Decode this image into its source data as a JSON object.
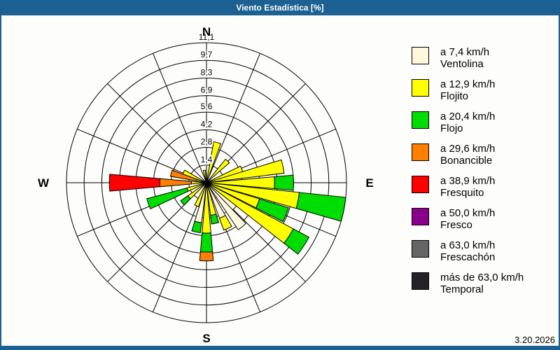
{
  "window": {
    "title": "Viento Estadística [%]",
    "date": "3.20.2026",
    "titlebar_color": "#1C6191"
  },
  "compass": {
    "north": "N",
    "east": "E",
    "south": "S",
    "west": "W"
  },
  "chart_data": {
    "type": "windrose",
    "unit": "%",
    "axis_max": 11.1,
    "ring_values": [
      1.4,
      2.8,
      4.2,
      5.6,
      6.9,
      8.3,
      9.7,
      11.1
    ],
    "ring_labels": [
      "1,4",
      "2,8",
      "4,2",
      "5,6",
      "6,9",
      "8,3",
      "9,7",
      "11,1"
    ],
    "spoke_count": 16,
    "bar_width_deg": 10,
    "grid_color": "#000000",
    "classes": [
      {
        "id": "ventolina",
        "color": "#FFF8DC",
        "speed_label": "a 7,4 km/h",
        "name": "Ventolina"
      },
      {
        "id": "flojito",
        "color": "#FFFF00",
        "speed_label": "a 12,9 km/h",
        "name": "Flojito"
      },
      {
        "id": "flojo",
        "color": "#00DD00",
        "speed_label": "a 20,4 km/h",
        "name": "Flojo"
      },
      {
        "id": "bonancible",
        "color": "#FF8000",
        "speed_label": "a 29,6 km/h",
        "name": "Bonancible"
      },
      {
        "id": "fresquito",
        "color": "#FF0000",
        "speed_label": "a 38,9 km/h",
        "name": "Fresquito"
      },
      {
        "id": "fresco",
        "color": "#8B008B",
        "speed_label": "a 50,0 km/h",
        "name": "Fresco"
      },
      {
        "id": "frescachon",
        "color": "#666666",
        "speed_label": "a 63,0 km/h",
        "name": "Frescachón"
      },
      {
        "id": "temporal",
        "color": "#242226",
        "speed_label": "más de 63,0 km/h",
        "name": "Temporal"
      }
    ],
    "bars": [
      {
        "dir": 15,
        "segments": [
          [
            "flojito",
            3.3
          ]
        ]
      },
      {
        "dir": 44,
        "segments": [
          [
            "flojito",
            2.4
          ]
        ]
      },
      {
        "dir": 69,
        "segments": [
          [
            "flojito",
            3.0
          ]
        ]
      },
      {
        "dir": 78,
        "segments": [
          [
            "flojito",
            6.2
          ]
        ]
      },
      {
        "dir": 90,
        "segments": [
          [
            "flojito",
            5.4
          ],
          [
            "flojo",
            6.9
          ]
        ]
      },
      {
        "dir": 101,
        "segments": [
          [
            "flojito",
            7.4
          ],
          [
            "flojo",
            11.1
          ]
        ]
      },
      {
        "dir": 112,
        "segments": [
          [
            "flojito",
            4.4
          ],
          [
            "flojo",
            6.8
          ]
        ]
      },
      {
        "dir": 123,
        "segments": [
          [
            "flojito",
            7.8
          ],
          [
            "flojo",
            9.2
          ]
        ]
      },
      {
        "dir": 133,
        "segments": [
          [
            "ventolina",
            3.0
          ]
        ]
      },
      {
        "dir": 141,
        "segments": [
          [
            "ventolina",
            4.5
          ]
        ]
      },
      {
        "dir": 155,
        "segments": [
          [
            "ventolina",
            3.0
          ],
          [
            "flojito",
            4.0
          ]
        ]
      },
      {
        "dir": 168,
        "segments": [
          [
            "flojito",
            2.6
          ],
          [
            "flojo",
            3.3
          ]
        ]
      },
      {
        "dir": 180,
        "segments": [
          [
            "flojito",
            4.0
          ],
          [
            "flojo",
            5.5
          ],
          [
            "bonancible",
            6.2
          ]
        ]
      },
      {
        "dir": 192,
        "segments": [
          [
            "ventolina",
            3.2
          ],
          [
            "flojo",
            4.0
          ]
        ]
      },
      {
        "dir": 203,
        "segments": [
          [
            "flojito",
            2.0
          ]
        ]
      },
      {
        "dir": 230,
        "segments": [
          [
            "flojito",
            1.8
          ],
          [
            "flojo",
            2.5
          ]
        ]
      },
      {
        "dir": 250,
        "segments": [
          [
            "flojito",
            1.6
          ],
          [
            "flojo",
            4.9
          ]
        ]
      },
      {
        "dir": 270,
        "segments": [
          [
            "flojito",
            1.2
          ],
          [
            "bonancible",
            3.7
          ],
          [
            "fresquito",
            7.7
          ]
        ]
      },
      {
        "dir": 285,
        "segments": [
          [
            "flojito",
            0.8
          ],
          [
            "bonancible",
            2.9
          ]
        ]
      },
      {
        "dir": 295,
        "segments": [
          [
            "flojito",
            2.0
          ]
        ]
      },
      {
        "dir": 350,
        "segments": [
          [
            "flojito",
            1.0
          ]
        ]
      }
    ]
  }
}
